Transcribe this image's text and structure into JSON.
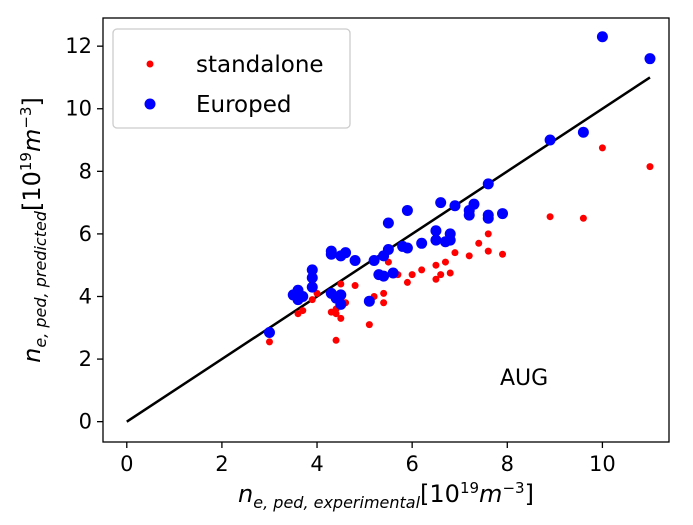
{
  "chart_data": {
    "type": "scatter",
    "xlabel": "n_{e,ped,experimental}[10^{19}m^{-3}]",
    "ylabel": "n_{e,ped,predicted}[10^{19}m^{-3}]",
    "xlim": [
      -0.5,
      11.4
    ],
    "ylim": [
      -0.65,
      12.9
    ],
    "xticks": [
      0,
      2,
      4,
      6,
      8,
      10
    ],
    "yticks": [
      0,
      2,
      4,
      6,
      8,
      10,
      12
    ],
    "grid": false,
    "legend_position": "top-left",
    "annotation": "AUG",
    "series": [
      {
        "name": "standalone",
        "color": "#ff0000",
        "marker": "small-dot",
        "points": [
          [
            3.0,
            2.55
          ],
          [
            3.6,
            3.45
          ],
          [
            3.7,
            3.55
          ],
          [
            3.9,
            3.9
          ],
          [
            4.0,
            4.1
          ],
          [
            4.3,
            3.5
          ],
          [
            4.4,
            3.45
          ],
          [
            4.4,
            3.6
          ],
          [
            4.5,
            3.3
          ],
          [
            4.4,
            2.6
          ],
          [
            4.5,
            4.4
          ],
          [
            4.6,
            3.8
          ],
          [
            4.8,
            4.35
          ],
          [
            5.1,
            3.1
          ],
          [
            5.2,
            4.0
          ],
          [
            5.4,
            3.8
          ],
          [
            5.4,
            4.1
          ],
          [
            5.5,
            5.1
          ],
          [
            5.7,
            4.7
          ],
          [
            5.9,
            4.45
          ],
          [
            6.0,
            4.7
          ],
          [
            6.2,
            4.85
          ],
          [
            6.5,
            4.55
          ],
          [
            6.5,
            5.0
          ],
          [
            6.6,
            4.7
          ],
          [
            6.7,
            5.1
          ],
          [
            6.8,
            4.75
          ],
          [
            6.9,
            5.4
          ],
          [
            7.2,
            5.3
          ],
          [
            7.4,
            5.7
          ],
          [
            7.6,
            5.45
          ],
          [
            7.6,
            6.0
          ],
          [
            7.9,
            5.35
          ],
          [
            8.9,
            6.55
          ],
          [
            9.6,
            6.5
          ],
          [
            10.0,
            8.75
          ],
          [
            11.0,
            8.15
          ]
        ]
      },
      {
        "name": "Europed",
        "color": "#0000ff",
        "marker": "dot",
        "points": [
          [
            3.0,
            2.85
          ],
          [
            3.5,
            4.05
          ],
          [
            3.6,
            3.9
          ],
          [
            3.6,
            4.2
          ],
          [
            3.7,
            4.0
          ],
          [
            3.9,
            4.3
          ],
          [
            3.9,
            4.6
          ],
          [
            3.9,
            4.85
          ],
          [
            4.3,
            4.1
          ],
          [
            4.3,
            5.35
          ],
          [
            4.3,
            5.45
          ],
          [
            4.4,
            3.95
          ],
          [
            4.5,
            3.75
          ],
          [
            4.5,
            4.05
          ],
          [
            4.5,
            5.3
          ],
          [
            4.6,
            5.4
          ],
          [
            4.8,
            5.15
          ],
          [
            5.1,
            3.85
          ],
          [
            5.2,
            5.15
          ],
          [
            5.3,
            4.7
          ],
          [
            5.4,
            4.65
          ],
          [
            5.4,
            5.3
          ],
          [
            5.5,
            5.5
          ],
          [
            5.5,
            6.35
          ],
          [
            5.6,
            4.75
          ],
          [
            5.8,
            5.6
          ],
          [
            5.9,
            5.55
          ],
          [
            5.9,
            6.75
          ],
          [
            6.2,
            5.7
          ],
          [
            6.5,
            5.8
          ],
          [
            6.5,
            6.1
          ],
          [
            6.6,
            7.0
          ],
          [
            6.7,
            5.75
          ],
          [
            6.8,
            6.0
          ],
          [
            6.8,
            5.8
          ],
          [
            6.9,
            6.9
          ],
          [
            7.2,
            6.6
          ],
          [
            7.2,
            6.75
          ],
          [
            7.3,
            6.95
          ],
          [
            7.6,
            6.5
          ],
          [
            7.6,
            6.6
          ],
          [
            7.6,
            7.6
          ],
          [
            7.9,
            6.65
          ],
          [
            8.9,
            9.0
          ],
          [
            9.6,
            9.25
          ],
          [
            10.0,
            12.3
          ],
          [
            11.0,
            11.6
          ]
        ]
      }
    ],
    "reference_line": {
      "color": "#000000",
      "points": [
        [
          0,
          0
        ],
        [
          11,
          11
        ]
      ]
    }
  }
}
